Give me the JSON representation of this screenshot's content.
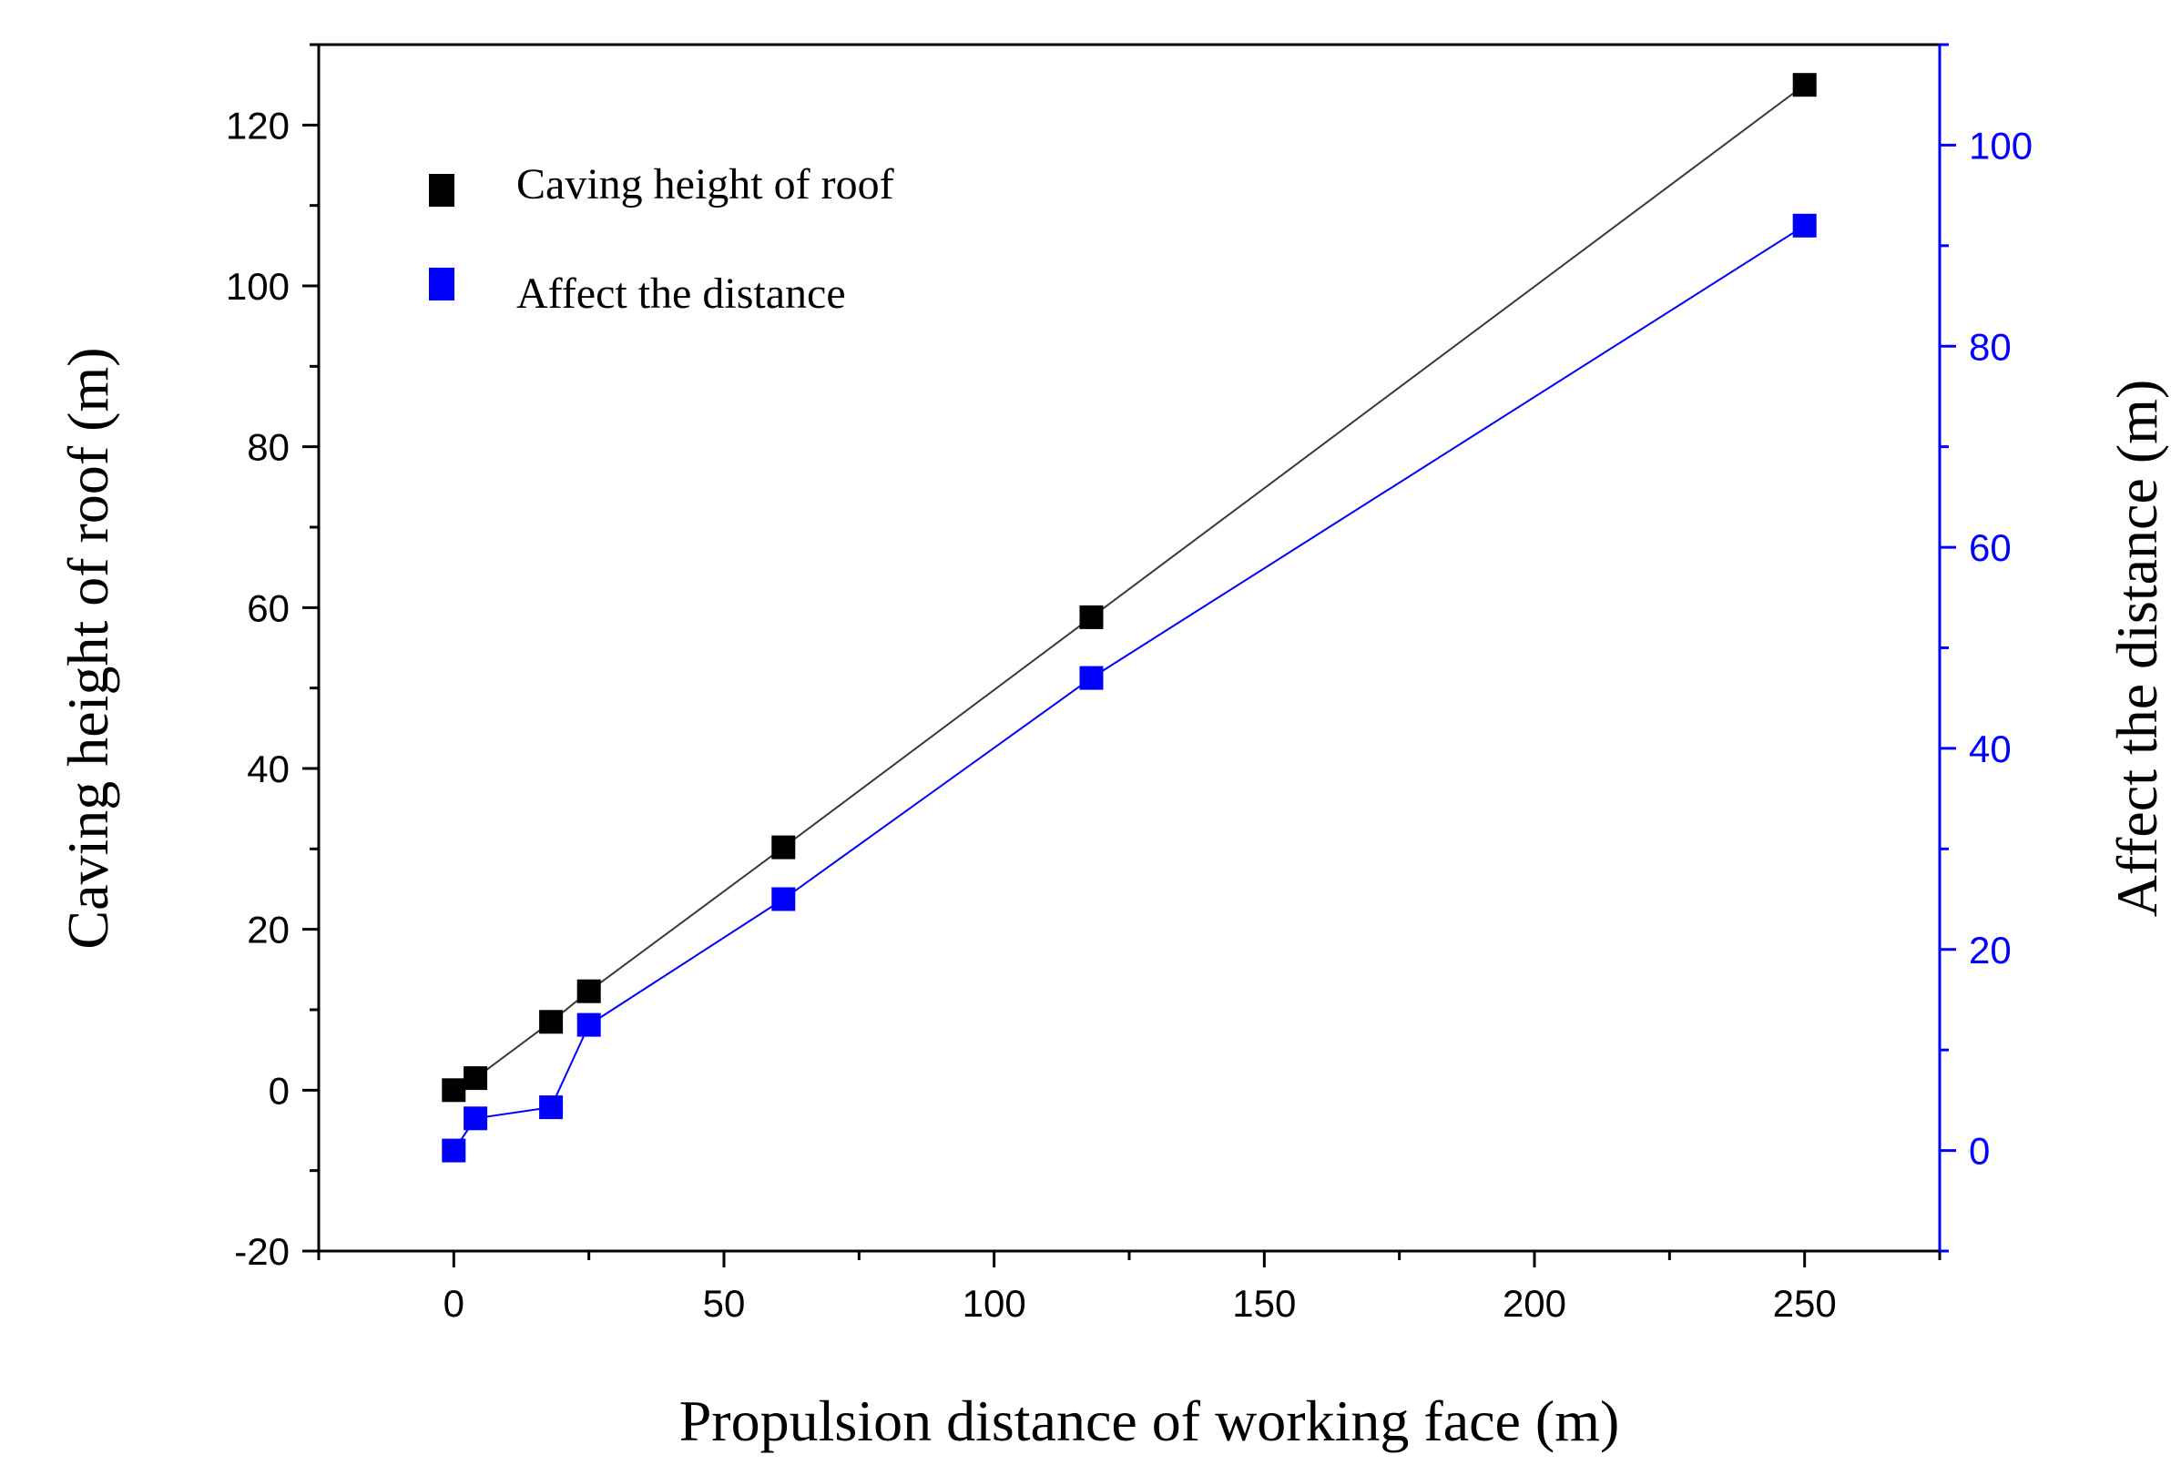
{
  "chart_data": {
    "type": "line",
    "title": "",
    "xlabel": "Propulsion distance of working face (m)",
    "ylabel": "Caving height of roof (m)",
    "y2label": "Affect the distance (m)",
    "xlim": [
      -25,
      275
    ],
    "ylim": [
      -20,
      130
    ],
    "y2lim": [
      -10,
      110
    ],
    "x_ticks": [
      0,
      50,
      100,
      150,
      200,
      250
    ],
    "y_ticks": [
      -20,
      0,
      20,
      40,
      60,
      80,
      100,
      120
    ],
    "y2_ticks": [
      0,
      20,
      40,
      60,
      80,
      100
    ],
    "x_tick_labels": [
      "0",
      "50",
      "100",
      "150",
      "200",
      "250"
    ],
    "y_tick_labels": [
      "-20",
      "0",
      "20",
      "40",
      "60",
      "80",
      "100",
      "120"
    ],
    "y2_tick_labels": [
      "0",
      "20",
      "40",
      "60",
      "80",
      "100"
    ],
    "legend_position": "top-left",
    "series": [
      {
        "name": "Caving height of roof",
        "axis": "left",
        "color": "#000000",
        "x": [
          0,
          4,
          18,
          25,
          61,
          118,
          250
        ],
        "values": [
          0,
          1.5,
          8.5,
          12.3,
          30.2,
          58.8,
          125
        ]
      },
      {
        "name": "Affect the distance",
        "axis": "right",
        "color": "#0000ff",
        "x": [
          0,
          4,
          18,
          25,
          61,
          118,
          250
        ],
        "values": [
          0,
          3.2,
          4.3,
          12.5,
          25,
          47,
          92
        ]
      }
    ]
  }
}
